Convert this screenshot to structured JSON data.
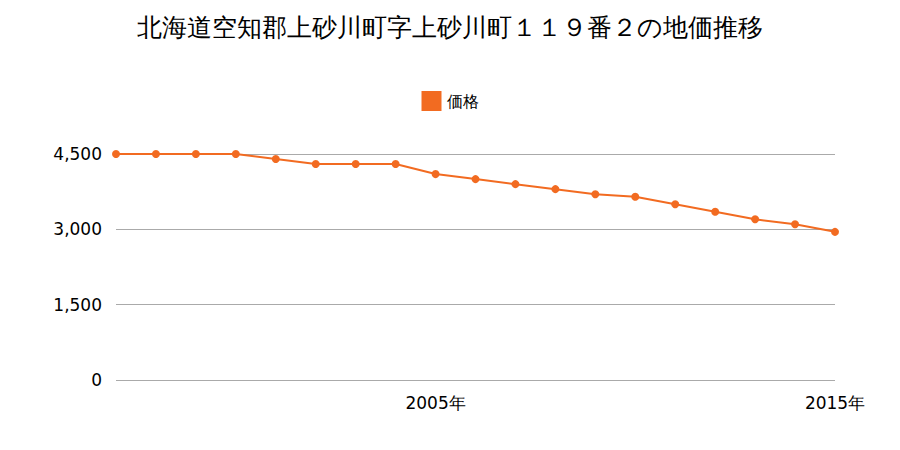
{
  "chart_data": {
    "type": "line",
    "title": "北海道空知郡上砂川町字上砂川町１１９番２の地価推移",
    "categories": [
      null,
      null,
      null,
      null,
      null,
      null,
      null,
      null,
      "2005年",
      null,
      null,
      null,
      null,
      null,
      null,
      null,
      null,
      null,
      "2015年"
    ],
    "series": [
      {
        "name": "価格",
        "color": "#f26b21",
        "marker": "circle",
        "values": [
          4500,
          4500,
          4500,
          4500,
          4400,
          4300,
          4300,
          4300,
          4100,
          4000,
          3900,
          3800,
          3700,
          3650,
          3500,
          3350,
          3200,
          3100,
          2950
        ]
      }
    ],
    "ylim": [
      0,
      4500
    ],
    "yticks": [
      0,
      {
        "value": 1500,
        "label": "1,500"
      },
      {
        "value": 3000,
        "label": "3,000"
      },
      {
        "value": 4500,
        "label": "4,500"
      }
    ],
    "grid": true,
    "legend": "top"
  }
}
